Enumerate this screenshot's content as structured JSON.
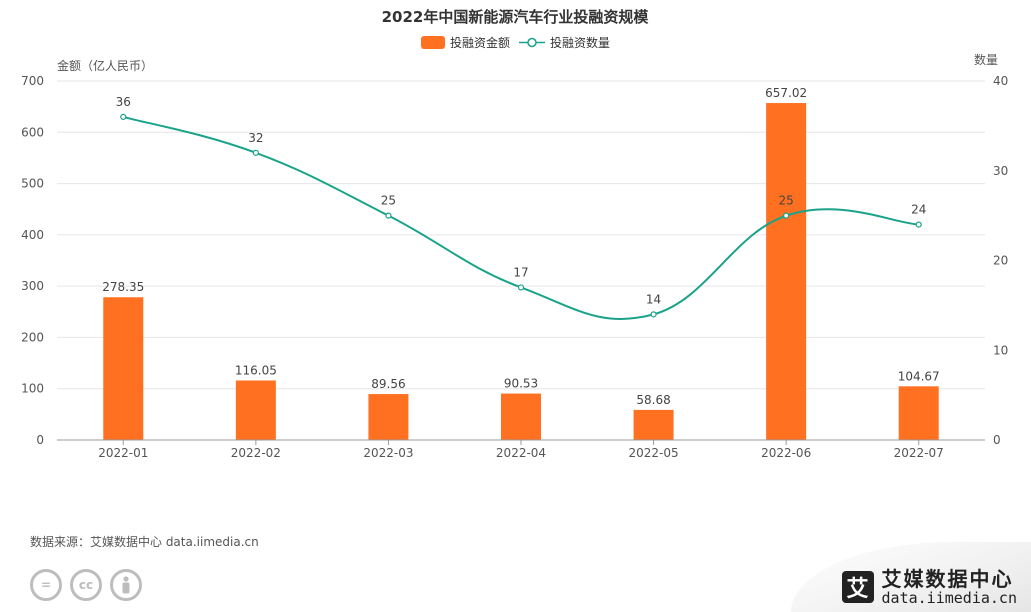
{
  "chart_data": {
    "type": "bar",
    "title": "2022年中国新能源汽车行业投融资规模",
    "categories": [
      "2022-01",
      "2022-02",
      "2022-03",
      "2022-04",
      "2022-05",
      "2022-06",
      "2022-07"
    ],
    "series": [
      {
        "name": "投融资金额",
        "type": "bar",
        "axis": "left",
        "color": "#ff7020",
        "values": [
          278.35,
          116.05,
          89.56,
          90.53,
          58.68,
          657.02,
          104.67
        ],
        "labels": [
          "278.35",
          "116.05",
          "89.56",
          "90.53",
          "58.68",
          "657.02",
          "104.67"
        ]
      },
      {
        "name": "投融资数量",
        "type": "line",
        "axis": "right",
        "color": "#1aa38a",
        "values": [
          36,
          32,
          25,
          17,
          14,
          25,
          24
        ],
        "labels": [
          "36",
          "32",
          "25",
          "17",
          "14",
          "25",
          "24"
        ]
      }
    ],
    "ylabel_left": "金额（亿人民币）",
    "ylabel_right": "数量",
    "ylim_left": [
      0,
      700
    ],
    "yticks_left": [
      "0",
      "100",
      "200",
      "300",
      "400",
      "500",
      "600",
      "700"
    ],
    "ylim_right": [
      0,
      40
    ],
    "yticks_right": [
      "0",
      "10",
      "20",
      "30",
      "40"
    ],
    "grid": true,
    "legend": "top-center"
  },
  "footer": {
    "source": "数据来源：艾媒数据中心 data.iimedia.cn",
    "brand_logo": "艾",
    "brand_name": "艾媒数据中心",
    "brand_url": "data.iimedia.cn",
    "license_icons": [
      "=",
      "cc",
      "person"
    ]
  }
}
